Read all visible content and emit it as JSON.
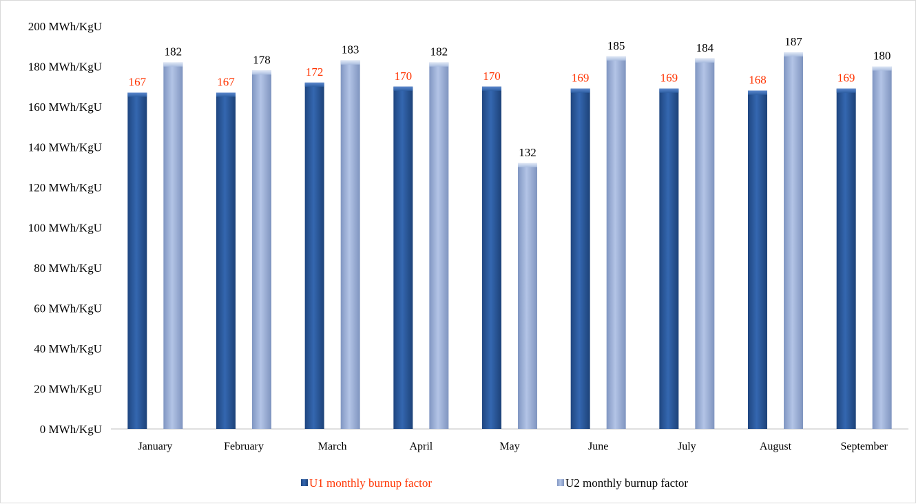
{
  "chart_data": {
    "type": "bar",
    "categories": [
      "January",
      "February",
      "March",
      "April",
      "May",
      "June",
      "July",
      "August",
      "September"
    ],
    "series": [
      {
        "name": "U1 monthly burnup factor",
        "values": [
          167,
          167,
          172,
          170,
          170,
          169,
          169,
          168,
          169
        ],
        "color": "#2e5fa3",
        "label_color": "#ff3300"
      },
      {
        "name": "U2 monthly burnup factor",
        "values": [
          182,
          178,
          183,
          182,
          132,
          185,
          184,
          187,
          180
        ],
        "color": "#9fb3d9",
        "label_color": "#000000"
      }
    ],
    "y_ticks": [
      "0 MWh/KgU",
      "20 MWh/KgU",
      "40 MWh/KgU",
      "60 MWh/KgU",
      "80 MWh/KgU",
      "100 MWh/KgU",
      "120 MWh/KgU",
      "140 MWh/KgU",
      "160 MWh/KgU",
      "180 MWh/KgU",
      "200 MWh/KgU"
    ],
    "ylim": [
      0,
      200
    ],
    "grid": false,
    "legend_position": "bottom",
    "xlabel": "",
    "ylabel": ""
  }
}
